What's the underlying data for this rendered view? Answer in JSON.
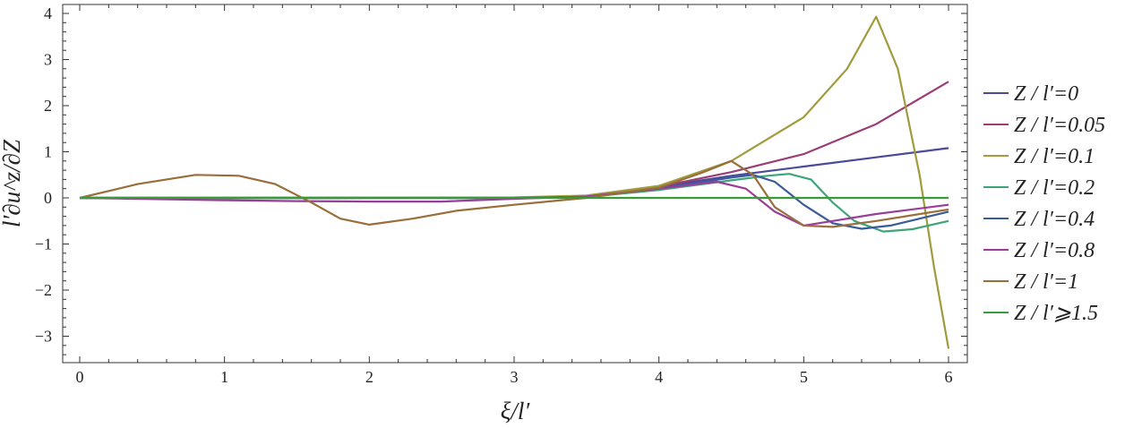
{
  "chart_data": {
    "type": "line",
    "xlabel": "ξ/l′",
    "ylabel": "l′∂u^z/∂Z",
    "xlim": [
      0,
      6
    ],
    "ylim": [
      -3.6,
      4.2
    ],
    "x_ticks": [
      "0",
      "1",
      "2",
      "3",
      "4",
      "5",
      "6"
    ],
    "y_ticks": [
      "−3",
      "−2",
      "−1",
      "0",
      "1",
      "2",
      "3",
      "4"
    ],
    "grid": false,
    "legend_position": "right",
    "series": [
      {
        "name": "Z / l′=0",
        "color": "#4a4a9a",
        "points": [
          [
            0,
            0
          ],
          [
            1,
            0
          ],
          [
            2,
            0
          ],
          [
            3,
            0
          ],
          [
            3.5,
            0.03
          ],
          [
            4,
            0.24
          ],
          [
            4.5,
            0.48
          ],
          [
            5,
            0.68
          ],
          [
            5.5,
            0.88
          ],
          [
            6,
            1.08
          ]
        ]
      },
      {
        "name": "Z / l′=0.05",
        "color": "#9b3d76",
        "points": [
          [
            0,
            0
          ],
          [
            1,
            0
          ],
          [
            2,
            0
          ],
          [
            3,
            0
          ],
          [
            3.5,
            0.04
          ],
          [
            4,
            0.24
          ],
          [
            4.5,
            0.56
          ],
          [
            5,
            0.95
          ],
          [
            5.5,
            1.6
          ],
          [
            6,
            2.52
          ]
        ]
      },
      {
        "name": "Z / l′=0.1",
        "color": "#a09b3c",
        "points": [
          [
            0,
            0
          ],
          [
            1,
            0
          ],
          [
            2,
            0
          ],
          [
            3,
            0.01
          ],
          [
            3.5,
            0.05
          ],
          [
            4,
            0.26
          ],
          [
            4.5,
            0.8
          ],
          [
            5,
            1.75
          ],
          [
            5.3,
            2.8
          ],
          [
            5.5,
            3.93
          ],
          [
            5.65,
            2.8
          ],
          [
            5.8,
            0.5
          ],
          [
            5.9,
            -1.5
          ],
          [
            6,
            -3.27
          ]
        ]
      },
      {
        "name": "Z / l′=0.2",
        "color": "#3ea57a",
        "points": [
          [
            0,
            0
          ],
          [
            1,
            0
          ],
          [
            2,
            0
          ],
          [
            3,
            0
          ],
          [
            3.5,
            0.02
          ],
          [
            4,
            0.17
          ],
          [
            4.5,
            0.38
          ],
          [
            4.75,
            0.48
          ],
          [
            4.9,
            0.52
          ],
          [
            5.05,
            0.4
          ],
          [
            5.2,
            -0.1
          ],
          [
            5.35,
            -0.5
          ],
          [
            5.55,
            -0.73
          ],
          [
            5.75,
            -0.68
          ],
          [
            6,
            -0.5
          ]
        ]
      },
      {
        "name": "Z / l′=0.4",
        "color": "#3a5a9a",
        "points": [
          [
            0,
            0
          ],
          [
            1,
            0
          ],
          [
            2,
            0
          ],
          [
            3,
            0
          ],
          [
            3.5,
            0.02
          ],
          [
            4,
            0.2
          ],
          [
            4.5,
            0.44
          ],
          [
            4.65,
            0.5
          ],
          [
            4.8,
            0.35
          ],
          [
            5,
            -0.15
          ],
          [
            5.2,
            -0.55
          ],
          [
            5.4,
            -0.67
          ],
          [
            5.6,
            -0.6
          ],
          [
            6,
            -0.3
          ]
        ]
      },
      {
        "name": "Z / l′=0.8",
        "color": "#9a3d9a",
        "points": [
          [
            0,
            0
          ],
          [
            1,
            -0.05
          ],
          [
            1.5,
            -0.07
          ],
          [
            2,
            -0.08
          ],
          [
            2.5,
            -0.08
          ],
          [
            3,
            -0.02
          ],
          [
            3.5,
            0.03
          ],
          [
            4,
            0.2
          ],
          [
            4.4,
            0.35
          ],
          [
            4.6,
            0.2
          ],
          [
            4.8,
            -0.3
          ],
          [
            5,
            -0.6
          ],
          [
            5.2,
            -0.5
          ],
          [
            5.5,
            -0.35
          ],
          [
            6,
            -0.15
          ]
        ]
      },
      {
        "name": "Z / l′=1",
        "color": "#9a6e3a",
        "points": [
          [
            0,
            0
          ],
          [
            0.4,
            0.3
          ],
          [
            0.8,
            0.5
          ],
          [
            1.1,
            0.48
          ],
          [
            1.35,
            0.3
          ],
          [
            1.6,
            -0.1
          ],
          [
            1.8,
            -0.45
          ],
          [
            2,
            -0.58
          ],
          [
            2.3,
            -0.45
          ],
          [
            2.6,
            -0.28
          ],
          [
            3,
            -0.15
          ],
          [
            3.5,
            0
          ],
          [
            4,
            0.22
          ],
          [
            4.3,
            0.55
          ],
          [
            4.5,
            0.8
          ],
          [
            4.65,
            0.5
          ],
          [
            4.8,
            -0.2
          ],
          [
            5,
            -0.6
          ],
          [
            5.2,
            -0.63
          ],
          [
            5.5,
            -0.5
          ],
          [
            6,
            -0.25
          ]
        ]
      },
      {
        "name": "Z / l′⩾1.5",
        "color": "#3a9a3a",
        "points": [
          [
            0,
            0
          ],
          [
            6,
            0
          ]
        ]
      }
    ]
  }
}
